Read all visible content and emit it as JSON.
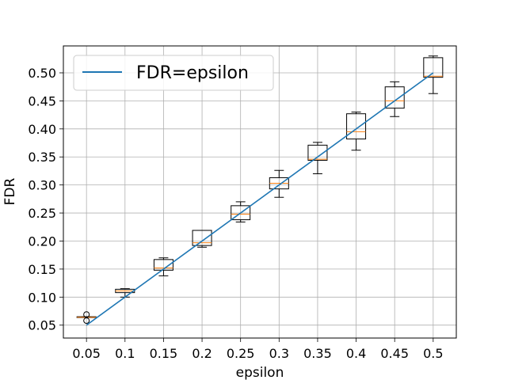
{
  "chart_data": {
    "type": "box",
    "xlabel": "epsilon",
    "ylabel": "FDR",
    "ylim": [
      0.027,
      0.548
    ],
    "grid": true,
    "legend_position": "top-left",
    "categories": [
      "0.05",
      "0.1",
      "0.15",
      "0.2",
      "0.25",
      "0.3",
      "0.35",
      "0.4",
      "0.45",
      "0.5"
    ],
    "yticks": [
      "0.05",
      "0.10",
      "0.15",
      "0.20",
      "0.25",
      "0.30",
      "0.35",
      "0.40",
      "0.45",
      "0.50"
    ],
    "boxes": [
      {
        "x": 0.05,
        "whislo": 0.064,
        "q1": 0.064,
        "med": 0.064,
        "q3": 0.065,
        "whishi": 0.065,
        "fliers": [
          0.058,
          0.069
        ]
      },
      {
        "x": 0.1,
        "whislo": 0.1,
        "q1": 0.108,
        "med": 0.111,
        "q3": 0.114,
        "whishi": 0.115,
        "fliers": []
      },
      {
        "x": 0.15,
        "whislo": 0.138,
        "q1": 0.148,
        "med": 0.152,
        "q3": 0.167,
        "whishi": 0.17,
        "fliers": []
      },
      {
        "x": 0.2,
        "whislo": 0.189,
        "q1": 0.192,
        "med": 0.197,
        "q3": 0.219,
        "whishi": 0.219,
        "fliers": []
      },
      {
        "x": 0.25,
        "whislo": 0.234,
        "q1": 0.238,
        "med": 0.248,
        "q3": 0.263,
        "whishi": 0.27,
        "fliers": []
      },
      {
        "x": 0.3,
        "whislo": 0.278,
        "q1": 0.293,
        "med": 0.303,
        "q3": 0.313,
        "whishi": 0.326,
        "fliers": []
      },
      {
        "x": 0.35,
        "whislo": 0.32,
        "q1": 0.344,
        "med": 0.346,
        "q3": 0.371,
        "whishi": 0.376,
        "fliers": []
      },
      {
        "x": 0.4,
        "whislo": 0.362,
        "q1": 0.382,
        "med": 0.395,
        "q3": 0.427,
        "whishi": 0.43,
        "fliers": []
      },
      {
        "x": 0.45,
        "whislo": 0.422,
        "q1": 0.437,
        "med": 0.45,
        "q3": 0.475,
        "whishi": 0.484,
        "fliers": []
      },
      {
        "x": 0.5,
        "whislo": 0.463,
        "q1": 0.492,
        "med": 0.494,
        "q3": 0.527,
        "whishi": 0.53,
        "fliers": []
      }
    ],
    "series": [
      {
        "name": "FDR=epsilon",
        "type": "line",
        "x": [
          0.05,
          0.5
        ],
        "y": [
          0.05,
          0.5
        ],
        "color": "#1f77b4"
      }
    ],
    "colors": {
      "line": "#1f77b4",
      "median": "#ff7f0e",
      "box": "#000000",
      "grid": "#b0b0b0"
    }
  }
}
